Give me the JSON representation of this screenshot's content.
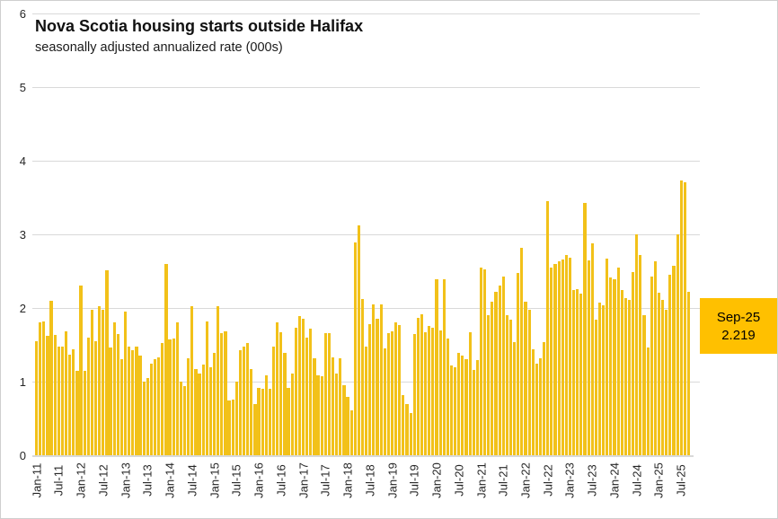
{
  "title": "Nova Scotia housing starts outside Halifax",
  "subtitle": "seasonally adjusted annualized rate (000s)",
  "callout": {
    "label": "Sep-25",
    "value": "2.219"
  },
  "colors": {
    "bar": "#f2c119",
    "callout_bg": "#ffc000",
    "gridline": "#d9d9d9",
    "text": "#262626"
  },
  "chart_data": {
    "type": "bar",
    "title": "Nova Scotia housing starts outside Halifax",
    "subtitle": "seasonally adjusted annualized rate (000s)",
    "unit": "thousands of units (000s)",
    "start_month": "Jan-2011",
    "end_month": "Sep-2025",
    "ylim": [
      0,
      6
    ],
    "y_ticks": [
      0,
      1,
      2,
      3,
      4,
      5,
      6
    ],
    "grid": "horizontal",
    "x_tick_labels": [
      "Jan-11",
      "Jul-11",
      "Jan-12",
      "Jul-12",
      "Jan-13",
      "Jul-13",
      "Jan-14",
      "Jul-14",
      "Jan-15",
      "Jul-15",
      "Jan-16",
      "Jul-16",
      "Jan-17",
      "Jul-17",
      "Jan-18",
      "Jul-18",
      "Jan-19",
      "Jul-19",
      "Jan-20",
      "Jul-20",
      "Jan-21",
      "Jul-21",
      "Jan-22",
      "Jul-22",
      "Jan-23",
      "Jul-23",
      "Jan-24",
      "Jul-24",
      "Jan-25",
      "Jul-25"
    ],
    "x_tick_every_n_months": 6,
    "values": [
      1.55,
      1.8,
      1.82,
      1.62,
      2.1,
      1.64,
      1.48,
      1.48,
      1.68,
      1.37,
      1.44,
      1.15,
      2.3,
      1.15,
      1.6,
      1.98,
      1.55,
      2.02,
      1.97,
      2.51,
      1.46,
      1.8,
      1.65,
      1.3,
      1.95,
      1.48,
      1.43,
      1.47,
      1.35,
      1.0,
      1.05,
      1.25,
      1.31,
      1.33,
      1.52,
      2.6,
      1.57,
      1.58,
      1.8,
      1.0,
      0.94,
      1.32,
      2.03,
      1.17,
      1.11,
      1.23,
      1.82,
      1.19,
      1.39,
      2.02,
      1.66,
      1.68,
      0.74,
      0.76,
      1.0,
      1.43,
      1.48,
      1.52,
      1.17,
      0.7,
      0.92,
      0.9,
      1.09,
      0.9,
      1.47,
      1.8,
      1.67,
      1.39,
      0.92,
      1.11,
      1.73,
      1.89,
      1.85,
      1.6,
      1.72,
      1.32,
      1.09,
      1.07,
      1.66,
      1.66,
      1.33,
      1.11,
      1.32,
      0.95,
      0.79,
      0.61,
      2.89,
      3.12,
      2.12,
      1.47,
      1.78,
      2.05,
      1.85,
      2.05,
      1.45,
      1.66,
      1.68,
      1.8,
      1.77,
      0.82,
      0.7,
      0.57,
      1.65,
      1.86,
      1.91,
      1.67,
      1.76,
      1.73,
      2.39,
      1.69,
      2.39,
      1.59,
      1.22,
      1.2,
      1.39,
      1.35,
      1.31,
      1.67,
      1.16,
      1.29,
      2.55,
      2.53,
      1.9,
      2.08,
      2.22,
      2.31,
      2.43,
      1.9,
      1.84,
      1.54,
      2.48,
      2.82,
      2.09,
      1.98,
      1.44,
      1.25,
      1.32,
      1.54,
      3.45,
      2.55,
      2.6,
      2.63,
      2.66,
      2.72,
      2.68,
      2.24,
      2.26,
      2.2,
      3.43,
      2.65,
      2.88,
      1.84,
      2.07,
      2.04,
      2.67,
      2.41,
      2.39,
      2.55,
      2.25,
      2.13,
      2.11,
      2.49,
      3.0,
      2.72,
      1.9,
      1.46,
      2.43,
      2.63,
      2.21,
      2.11,
      1.98,
      2.45,
      2.57,
      3.0,
      3.73,
      3.71,
      2.219
    ],
    "last_point": {
      "label": "Sep-25",
      "value": 2.219
    },
    "legend": "none"
  }
}
